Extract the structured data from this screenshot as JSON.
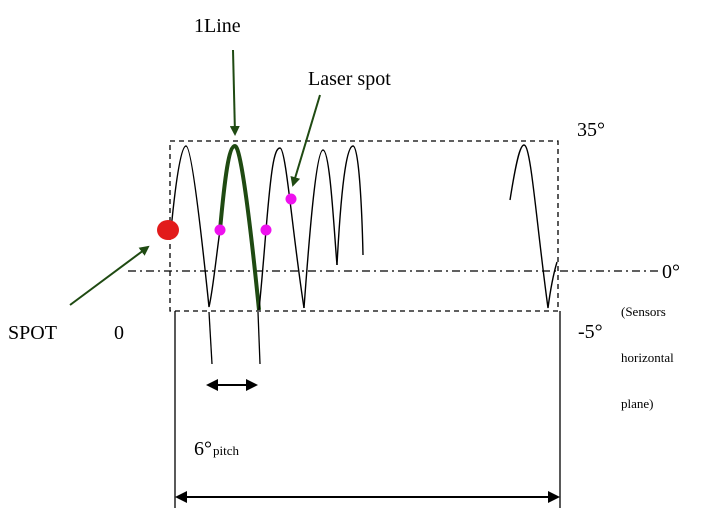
{
  "labels": {
    "one_line": "1Line",
    "laser_spot": "Laser spot",
    "top_angle": "35°",
    "zero_angle": "0°",
    "bottom_angle": "-5°",
    "spot": "SPOT",
    "spot_index": "0",
    "sensors_1": "(Sensors",
    "sensors_2": "horizontal",
    "sensors_3": "plane)",
    "pitch_deg": "6°",
    "pitch_word": "pitch"
  },
  "colors": {
    "line": "#000000",
    "highlight": "#1f4a12",
    "arrow": "#1f4a12",
    "spot_red": "#e21b1b",
    "laser_magenta": "#ee11ee"
  }
}
